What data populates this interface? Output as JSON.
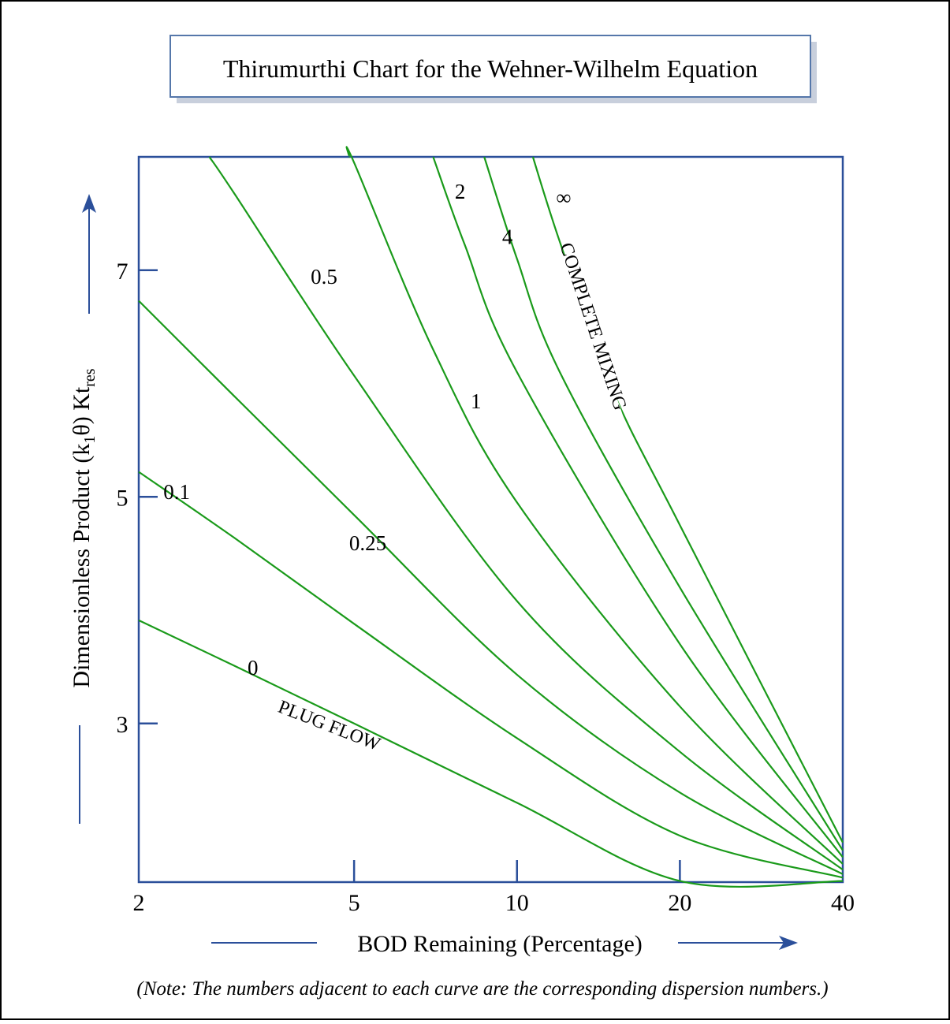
{
  "chart_data": {
    "type": "line",
    "title": "Thirumurthi Chart for the Wehner-Wilhelm Equation",
    "xlabel": "BOD Remaining (Percentage)",
    "ylabel_main": "Dimensionless Product (k",
    "ylabel_sub1": "1",
    "ylabel_mid": "θ)  Kt",
    "ylabel_sub2": "res",
    "x_scale": "log",
    "xlim": [
      2,
      40
    ],
    "ylim": [
      1.6,
      8.0
    ],
    "x_ticks": [
      {
        "value": 2,
        "label": "2"
      },
      {
        "value": 5,
        "label": "5"
      },
      {
        "value": 10,
        "label": "10"
      },
      {
        "value": 20,
        "label": "20"
      },
      {
        "value": 40,
        "label": "40"
      }
    ],
    "y_ticks": [
      {
        "value": 3,
        "label": "3"
      },
      {
        "value": 5,
        "label": "5"
      },
      {
        "value": 7,
        "label": "7"
      }
    ],
    "grid": false,
    "note": "(Note: The numbers adjacent to each curve are the corresponding dispersion numbers.)",
    "series": [
      {
        "name": "0",
        "x": [
          2,
          3,
          5,
          10,
          20,
          40
        ],
        "y": [
          3.91,
          3.51,
          3.0,
          2.3,
          1.61,
          1.61
        ]
      },
      {
        "name": "0.1",
        "x": [
          2,
          3,
          5,
          10,
          20,
          40
        ],
        "y": [
          5.22,
          4.64,
          3.88,
          2.87,
          2.01,
          1.64
        ]
      },
      {
        "name": "0.25",
        "x": [
          2,
          3,
          5,
          10,
          20,
          40
        ],
        "y": [
          6.73,
          5.89,
          4.84,
          3.43,
          2.39,
          1.67
        ]
      },
      {
        "name": "0.5",
        "x": [
          2.7,
          3,
          5,
          10,
          20,
          40
        ],
        "y": [
          8.0,
          7.68,
          6.07,
          4.08,
          2.75,
          1.71
        ]
      },
      {
        "name": "1",
        "x": [
          4.9,
          5,
          7,
          10,
          20,
          40
        ],
        "y": [
          8.0,
          7.95,
          6.3,
          4.95,
          3.15,
          1.76
        ]
      },
      {
        "name": "2",
        "x": [
          7.0,
          8,
          10,
          20,
          40
        ],
        "y": [
          8.0,
          7.23,
          6.1,
          3.7,
          1.82
        ]
      },
      {
        "name": "4",
        "x": [
          8.7,
          10,
          12,
          20,
          40
        ],
        "y": [
          8.0,
          7.1,
          6.1,
          4.2,
          1.88
        ]
      },
      {
        "name": "∞",
        "x": [
          10.7,
          12,
          15,
          20,
          40
        ],
        "y": [
          8.0,
          7.25,
          5.95,
          4.75,
          1.95
        ]
      }
    ],
    "curve_labels": [
      {
        "text": "0.1",
        "x": 2.35,
        "y": 5.05
      },
      {
        "text": "0.25",
        "x": 5.3,
        "y": 4.6
      },
      {
        "text": "0.5",
        "x": 4.4,
        "y": 6.95
      },
      {
        "text": "0",
        "x": 3.25,
        "y": 3.5
      },
      {
        "text": "1",
        "x": 8.4,
        "y": 5.85
      },
      {
        "text": "2",
        "x": 7.85,
        "y": 7.7
      },
      {
        "text": "4",
        "x": 9.6,
        "y": 7.3
      },
      {
        "text": "∞",
        "x": 12.2,
        "y": 7.65
      }
    ],
    "inline_labels": [
      {
        "text": "PLUG FLOW",
        "series": "0"
      },
      {
        "text": "COMPLETE MIXING",
        "series": "∞"
      }
    ],
    "colors": {
      "curve": "#1a9a1a",
      "axis": "#2b4f9a",
      "frame": "#000000",
      "title_box_border": "#5577aa",
      "title_box_shadow": "#c8cfdc",
      "arrow": "#2b4f9a",
      "text": "#000000"
    }
  }
}
